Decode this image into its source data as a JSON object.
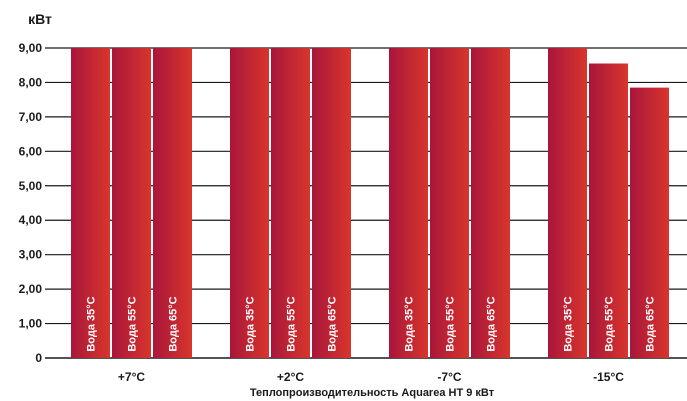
{
  "chart_data": {
    "type": "bar",
    "ylabel": "кВт",
    "xlabel": "Теплопроизводительность Aquarea HT 9 кВт",
    "categories": [
      "+7°C",
      "+2°C",
      "-7°C",
      "-15°C"
    ],
    "bar_labels": [
      "Вода 35°C",
      "Вода 55°C",
      "Вода 65°C"
    ],
    "series": [
      {
        "name": "Вода 35°C",
        "values": [
          9.0,
          9.0,
          9.0,
          9.0
        ]
      },
      {
        "name": "Вода 55°C",
        "values": [
          9.0,
          9.0,
          9.0,
          8.55
        ]
      },
      {
        "name": "Вода 65°C",
        "values": [
          9.0,
          9.0,
          9.0,
          7.85
        ]
      }
    ],
    "ylim": [
      0,
      9
    ],
    "yticks": [
      "0",
      "1,00",
      "2,00",
      "3,00",
      "4,00",
      "5,00",
      "6,00",
      "7,00",
      "8,00",
      "9,00"
    ],
    "grid": true,
    "legend": "none",
    "colors": {
      "bar_dark": "#a8163a",
      "bar_light": "#d8352c",
      "grid": "#1a1a1a"
    }
  }
}
